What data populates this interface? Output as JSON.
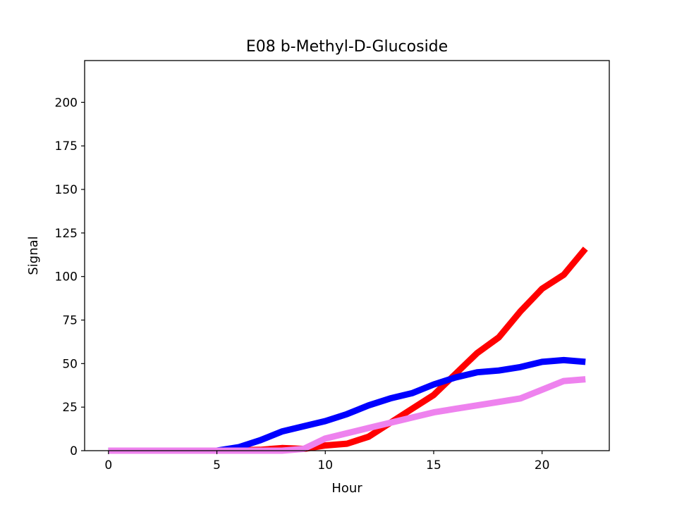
{
  "chart_data": {
    "type": "line",
    "title": "E08 b-Methyl-D-Glucoside",
    "xlabel": "Hour",
    "ylabel": "Signal",
    "xlim": [
      -1.1,
      23.1
    ],
    "ylim": [
      0,
      224
    ],
    "xticks": [
      0,
      5,
      10,
      15,
      20
    ],
    "yticks": [
      0,
      25,
      50,
      75,
      100,
      125,
      150,
      175,
      200
    ],
    "grid": false,
    "legend": "none",
    "series": [
      {
        "color": "#ff0000",
        "x": [
          0,
          5,
          7,
          8,
          9,
          10,
          11,
          12,
          13,
          14,
          15,
          16,
          17,
          18,
          19,
          20,
          21,
          22
        ],
        "y": [
          0,
          0,
          0.5,
          1.5,
          1,
          3,
          4,
          8,
          16,
          24,
          32,
          44,
          56,
          65,
          80,
          93,
          101,
          116
        ]
      },
      {
        "color": "#0000ff",
        "x": [
          0,
          5,
          6,
          7,
          8,
          9,
          10,
          11,
          12,
          13,
          14,
          15,
          16,
          17,
          18,
          19,
          20,
          21,
          22
        ],
        "y": [
          0,
          0,
          2,
          6,
          11,
          14,
          17,
          21,
          26,
          30,
          33,
          38,
          42,
          45,
          46,
          48,
          51,
          52,
          51
        ]
      },
      {
        "color": "#ee82ee",
        "x": [
          0,
          5,
          8,
          9,
          10,
          11,
          12,
          13,
          14,
          15,
          16,
          17,
          18,
          19,
          20,
          21,
          22
        ],
        "y": [
          0,
          0,
          0,
          1,
          7,
          10,
          13,
          16,
          19,
          22,
          24,
          26,
          28,
          30,
          35,
          40,
          41
        ]
      }
    ]
  }
}
